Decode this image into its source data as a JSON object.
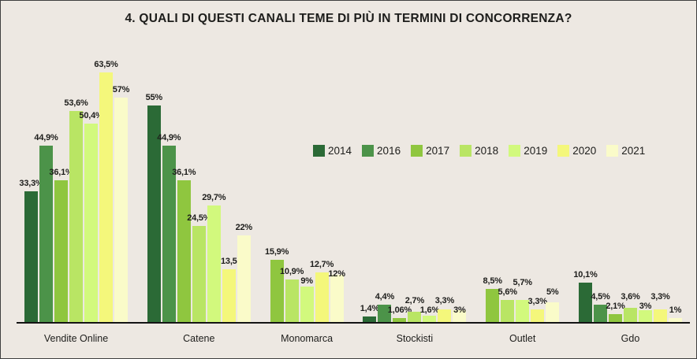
{
  "title": "4. QUALI DI QUESTI CANALI TEME DI PIÙ IN TERMINI DI CONCORRENZA?",
  "colors": {
    "background": "#EDE8E2",
    "axis": "#141414",
    "text": "#1D1D1B"
  },
  "chart_data": {
    "type": "bar",
    "title": "4. QUALI DI QUESTI CANALI TEME DI PIÙ IN TERMINI DI CONCORRENZA?",
    "categories": [
      "Vendite Online",
      "Catene",
      "Monomarca",
      "Stockisti",
      "Outlet",
      "Gdo"
    ],
    "series": [
      {
        "name": "2014",
        "color": "#2B6A36",
        "values": [
          33.3,
          55,
          null,
          1.4,
          null,
          10.1
        ],
        "labels": [
          "33,3%",
          "55%",
          null,
          "1,4%",
          null,
          "10,1%"
        ]
      },
      {
        "name": "2016",
        "color": "#4C9349",
        "values": [
          44.9,
          44.9,
          null,
          4.4,
          null,
          4.5
        ],
        "labels": [
          "44,9%",
          "44,9%",
          null,
          "4,4%",
          null,
          "4,5%"
        ]
      },
      {
        "name": "2017",
        "color": "#8FC63F",
        "values": [
          36.1,
          36.1,
          15.9,
          1.06,
          8.5,
          2.1
        ],
        "labels": [
          "36,1%",
          "36,1%",
          "15,9%",
          "1,06%",
          "8,5%",
          "2,1%"
        ]
      },
      {
        "name": "2018",
        "color": "#B9E564",
        "values": [
          53.6,
          24.5,
          10.9,
          2.7,
          5.6,
          3.6
        ],
        "labels": [
          "53,6%",
          "24,5%",
          "10,9%",
          "2,7%",
          "5,6%",
          "3,6%"
        ]
      },
      {
        "name": "2019",
        "color": "#D2F97D",
        "values": [
          50.4,
          29.7,
          9,
          1.6,
          5.7,
          3
        ],
        "labels": [
          "50,4%",
          "29,7%",
          "9%",
          "1,6%",
          "5,7%",
          "3%"
        ]
      },
      {
        "name": "2020",
        "color": "#F4F77B",
        "values": [
          63.5,
          13.5,
          12.7,
          3.3,
          3.3,
          3.3
        ],
        "labels": [
          "63,5%",
          "13,5",
          "12,7%",
          "3,3%",
          "3,3%",
          "3,3%"
        ]
      },
      {
        "name": "2021",
        "color": "#FAFBC9",
        "values": [
          57,
          22,
          12,
          3,
          5,
          1
        ],
        "labels": [
          "57%",
          "22%",
          "12%",
          "3%",
          "5%",
          "1%"
        ]
      }
    ],
    "ylim": [
      0,
      65
    ],
    "unit": "%",
    "grid": false,
    "legend_position": "center-right"
  }
}
